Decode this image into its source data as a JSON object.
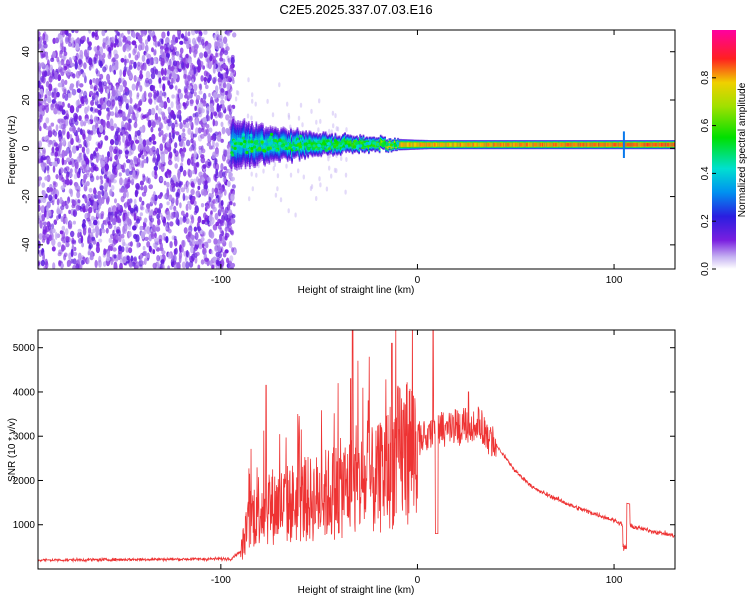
{
  "title": "C2E5.2025.337.07.03.E16",
  "chart_data": [
    {
      "type": "heatmap",
      "title": "C2E5.2025.337.07.03.E16",
      "xlabel": "Height of straight line (km)",
      "ylabel": "Frequency (Hz)",
      "xlim": [
        -193,
        131
      ],
      "ylim": [
        -50,
        49
      ],
      "xticks": [
        "-100",
        "0",
        "100"
      ],
      "xtick_values": [
        -100,
        0,
        100
      ],
      "yticks": [
        "-40",
        "-20",
        "0",
        "20",
        "40"
      ],
      "ytick_values": [
        -40,
        -20,
        0,
        20,
        40
      ],
      "noise_region_end_km": -95,
      "signal_freq_hz": 1.5,
      "colorbar": {
        "label": "Normalized spectral amplitude",
        "range": [
          0.0,
          1.0
        ],
        "ticks": [
          "0.0",
          "0.2",
          "0.4",
          "0.6",
          "0.8"
        ],
        "tick_values": [
          0.0,
          0.2,
          0.4,
          0.6,
          0.8
        ]
      }
    },
    {
      "type": "line",
      "xlabel": "Height of straight line (km)",
      "ylabel": "SNR (10 * v/v)",
      "xlim": [
        -193,
        131
      ],
      "ylim": [
        0,
        5400
      ],
      "xticks": [
        "-100",
        "0",
        "100"
      ],
      "xtick_values": [
        -100,
        0,
        100
      ],
      "yticks": [
        "1000",
        "2000",
        "3000",
        "4000",
        "5000"
      ],
      "ytick_values": [
        1000,
        2000,
        3000,
        4000,
        5000
      ],
      "color": "#ee3333",
      "envelope_x": [
        -193,
        -95,
        -90,
        -85,
        -80,
        -70,
        -60,
        -50,
        -40,
        -30,
        -20,
        -10,
        0,
        10,
        20,
        30,
        40,
        50,
        60,
        70,
        80,
        90,
        100,
        105,
        110,
        120,
        131
      ],
      "envelope_y": [
        200,
        230,
        400,
        1200,
        1500,
        1500,
        1600,
        1700,
        1900,
        2000,
        2100,
        2700,
        3000,
        3200,
        3300,
        3400,
        2800,
        2200,
        1800,
        1600,
        1400,
        1250,
        1100,
        1000,
        950,
        850,
        750
      ],
      "spikes": [
        {
          "x": -77,
          "y": 4150
        },
        {
          "x": -33,
          "y": 5400
        },
        {
          "x": -34,
          "y": 4300
        },
        {
          "x": -13,
          "y": 5100
        },
        {
          "x": 8,
          "y": 5400
        },
        {
          "x": -25,
          "y": 3800
        },
        {
          "x": 26,
          "y": 4000
        }
      ]
    }
  ]
}
